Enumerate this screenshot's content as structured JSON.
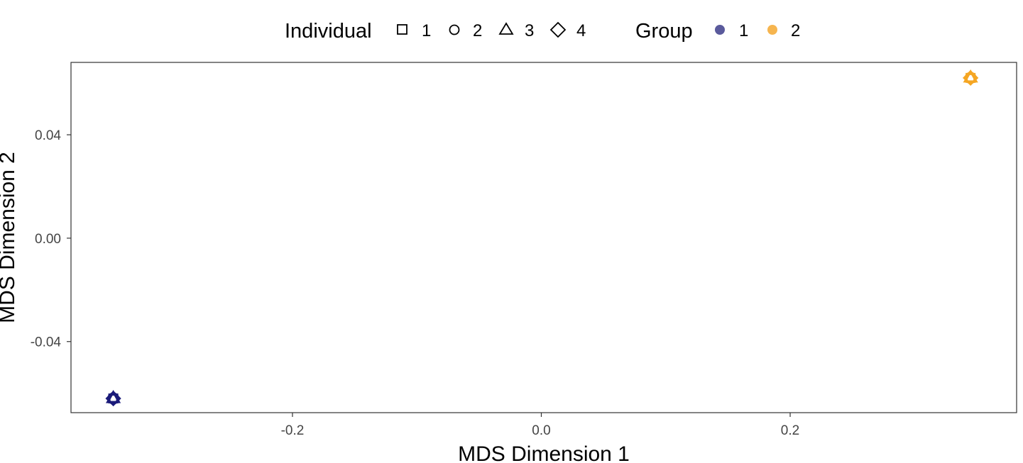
{
  "colors": {
    "group_1": "#1b1b7a",
    "group_2": "#f5a623",
    "group_1_legend": "#5a5a9c",
    "group_2_legend": "#f6b54f"
  },
  "legend": {
    "individual_title": "Individual",
    "individual_items": [
      {
        "label": "1",
        "shape": "square"
      },
      {
        "label": "2",
        "shape": "circle"
      },
      {
        "label": "3",
        "shape": "triangle"
      },
      {
        "label": "4",
        "shape": "diamond"
      }
    ],
    "group_title": "Group",
    "group_items": [
      {
        "label": "1"
      },
      {
        "label": "2"
      }
    ]
  },
  "chart_data": {
    "type": "scatter",
    "xlabel": "MDS Dimension 1",
    "ylabel": "MDS Dimension 2",
    "xlim": [
      -0.378,
      0.382
    ],
    "ylim": [
      -0.0675,
      0.068
    ],
    "xticks": [
      -0.2,
      0.0,
      0.2
    ],
    "xtick_labels": [
      "-0.2",
      "0.0",
      "0.2"
    ],
    "yticks": [
      -0.04,
      0.0,
      0.04
    ],
    "ytick_labels": [
      "-0.04",
      "0.00",
      "0.04"
    ],
    "grid": false,
    "legend_position": "top",
    "series": [
      {
        "group": "1",
        "individual": "1",
        "x": -0.344,
        "y": -0.062
      },
      {
        "group": "1",
        "individual": "2",
        "x": -0.344,
        "y": -0.062
      },
      {
        "group": "1",
        "individual": "3",
        "x": -0.344,
        "y": -0.062
      },
      {
        "group": "1",
        "individual": "4",
        "x": -0.344,
        "y": -0.062
      },
      {
        "group": "2",
        "individual": "1",
        "x": 0.345,
        "y": 0.062
      },
      {
        "group": "2",
        "individual": "2",
        "x": 0.345,
        "y": 0.062
      },
      {
        "group": "2",
        "individual": "3",
        "x": 0.345,
        "y": 0.062
      },
      {
        "group": "2",
        "individual": "4",
        "x": 0.345,
        "y": 0.062
      }
    ]
  }
}
